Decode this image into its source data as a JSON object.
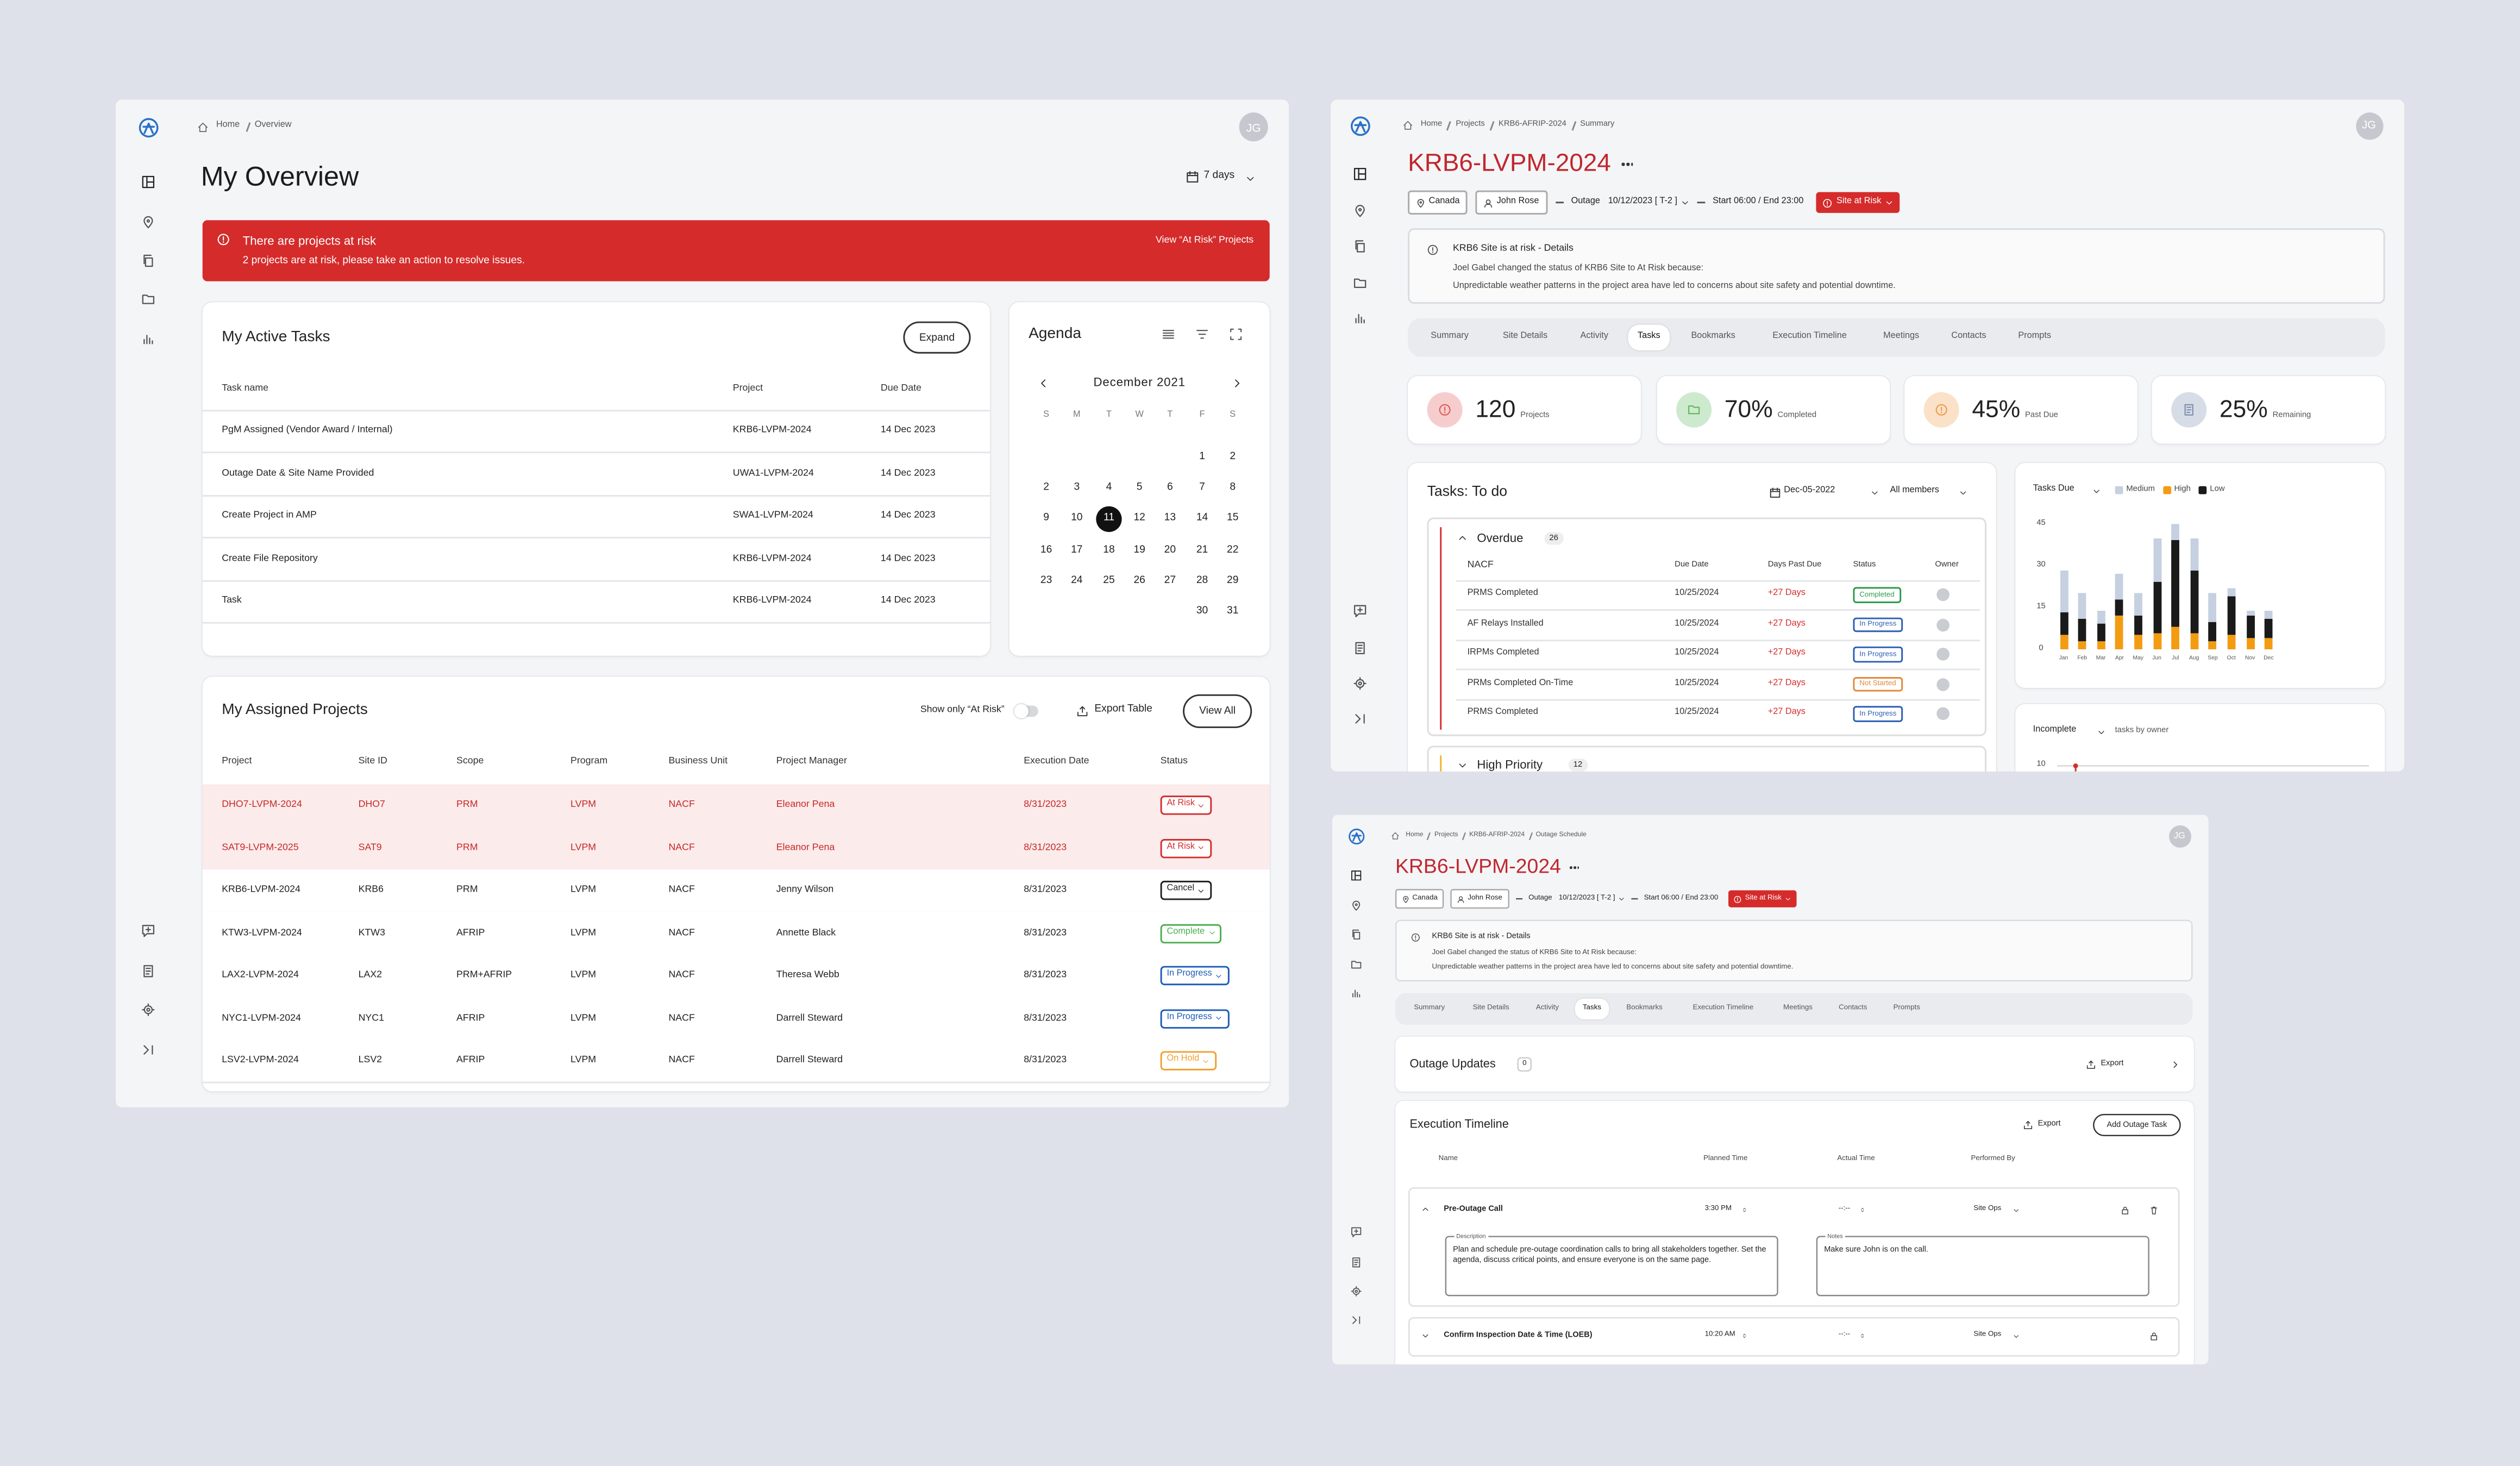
{
  "overview": {
    "breadcrumb": [
      "Home",
      "Overview"
    ],
    "avatar": "JG",
    "title": "My Overview",
    "range": "7 days",
    "alert": {
      "title": "There are projects at risk",
      "message": "2 projects are at risk, please take an action to resolve issues.",
      "action": "View “At Risk” Projects"
    },
    "tasks": {
      "title": "My Active Tasks",
      "button": "Expand",
      "columns": [
        "Task name",
        "Project",
        "Due Date"
      ],
      "rows": [
        [
          "PgM Assigned (Vendor Award / Internal)",
          "KRB6-LVPM-2024",
          "14 Dec 2023"
        ],
        [
          "Outage Date & Site Name Provided",
          "UWA1-LVPM-2024",
          "14 Dec 2023"
        ],
        [
          "Create Project in AMP",
          "SWA1-LVPM-2024",
          "14 Dec 2023"
        ],
        [
          "Create File Repository",
          "KRB6-LVPM-2024",
          "14 Dec 2023"
        ],
        [
          "Task",
          "KRB6-LVPM-2024",
          "14 Dec 2023"
        ]
      ]
    },
    "agenda": {
      "title": "Agenda",
      "month": "December 2021",
      "weekdays": [
        "S",
        "M",
        "T",
        "W",
        "T",
        "F",
        "S"
      ],
      "weeks": [
        [
          null,
          null,
          null,
          null,
          null,
          1,
          2
        ],
        [
          2,
          3,
          4,
          5,
          6,
          7,
          8
        ],
        [
          9,
          10,
          11,
          12,
          13,
          14,
          15
        ],
        [
          16,
          17,
          18,
          19,
          20,
          21,
          22
        ],
        [
          23,
          24,
          25,
          26,
          27,
          28,
          29
        ],
        [
          null,
          null,
          null,
          null,
          null,
          30,
          31
        ]
      ],
      "selected_day": 11
    },
    "projects": {
      "title": "My Assigned Projects",
      "toggle": "Show only “At Risk”",
      "export": "Export Table",
      "button": "View All",
      "columns": [
        "Project",
        "Site ID",
        "Scope",
        "Program",
        "Business Unit",
        "Project Manager",
        "Execution Date",
        "Status"
      ],
      "rows": [
        {
          "cells": [
            "DHO7-LVPM-2024",
            "DHO7",
            "PRM",
            "LVPM",
            "NACF",
            "Eleanor Pena",
            "8/31/2023"
          ],
          "status": "At Risk",
          "status_color": "#d32f2f",
          "text_color": "#c62828",
          "fill": "#fcebeb"
        },
        {
          "cells": [
            "SAT9-LVPM-2025",
            "SAT9",
            "PRM",
            "LVPM",
            "NACF",
            "Eleanor Pena",
            "8/31/2023"
          ],
          "status": "At Risk",
          "status_color": "#d32f2f",
          "text_color": "#c62828",
          "fill": "#fcebeb"
        },
        {
          "cells": [
            "KRB6-LVPM-2024",
            "KRB6",
            "PRM",
            "LVPM",
            "NACF",
            "Jenny Wilson",
            "8/31/2023"
          ],
          "status": "Cancel",
          "status_color": "#222222",
          "text_color": "#222222",
          "fill": "#ffffff"
        },
        {
          "cells": [
            "KTW3-LVPM-2024",
            "KTW3",
            "AFRIP",
            "LVPM",
            "NACF",
            "Annette Black",
            "8/31/2023"
          ],
          "status": "Complete",
          "status_color": "#4caf50",
          "text_color": "#222222",
          "fill": "#ffffff"
        },
        {
          "cells": [
            "LAX2-LVPM-2024",
            "LAX2",
            "PRM+AFRIP",
            "LVPM",
            "NACF",
            "Theresa Webb",
            "8/31/2023"
          ],
          "status": "In Progress",
          "status_color": "#1e5bb8",
          "text_color": "#222222",
          "fill": "#ffffff"
        },
        {
          "cells": [
            "NYC1-LVPM-2024",
            "NYC1",
            "AFRIP",
            "LVPM",
            "NACF",
            "Darrell Steward",
            "8/31/2023"
          ],
          "status": "In Progress",
          "status_color": "#1e5bb8",
          "text_color": "#222222",
          "fill": "#ffffff"
        },
        {
          "cells": [
            "LSV2-LVPM-2024",
            "LSV2",
            "AFRIP",
            "LVPM",
            "NACF",
            "Darrell Steward",
            "8/31/2023"
          ],
          "status": "On Hold",
          "status_color": "#f0a030",
          "text_color": "#222222",
          "fill": "#ffffff"
        }
      ]
    }
  },
  "project_summary": {
    "breadcrumb": [
      "Home",
      "Projects",
      "KRB6-AFRIP-2024",
      "Summary"
    ],
    "avatar": "JG",
    "title": "KRB6-LVPM-2024",
    "chips": {
      "location": "Canada",
      "owner": "John Rose",
      "outage_label": "Outage",
      "outage_date": "10/12/2023 [ T-2 ]",
      "hours": "Start 06:00 / End 23:00",
      "status": "Site at Risk"
    },
    "notice": {
      "title": "KRB6 Site is at risk - Details",
      "lines": [
        "Joel Gabel changed the status of KRB6 Site to At Risk because:",
        "Unpredictable weather patterns in the project area have led to concerns about site safety and potential downtime."
      ]
    },
    "tabs": [
      "Summary",
      "Site Details",
      "Activity",
      "Tasks",
      "Bookmarks",
      "Execution Timeline",
      "Meetings",
      "Contacts",
      "Prompts"
    ],
    "active_tab": 3,
    "stats": [
      {
        "value": "120",
        "label": "Projects",
        "color": "#e05a5a"
      },
      {
        "value": "70%",
        "label": "Completed",
        "color": "#5cb85c"
      },
      {
        "value": "45%",
        "label": "Past Due",
        "color": "#ef9a4a"
      },
      {
        "value": "25%",
        "label": "Remaining",
        "color": "#7b8db0"
      }
    ],
    "todo": {
      "title": "Tasks: To do",
      "date": "Dec-05-2022",
      "members": "All members",
      "groups": [
        {
          "name": "Overdue",
          "count": 26,
          "color": "#d32f2f",
          "columns": [
            "NACF",
            "Due Date",
            "Days Past Due",
            "Status",
            "Owner"
          ],
          "rows": [
            {
              "cells": [
                "PRMS Completed",
                "10/25/2024",
                "+27 Days"
              ],
              "status": "Completed",
              "status_color": "#2e9a4a"
            },
            {
              "cells": [
                "AF Relays Installed",
                "10/25/2024",
                "+27 Days"
              ],
              "status": "In Progress",
              "status_color": "#2c5fb5"
            },
            {
              "cells": [
                "IRPMs Completed",
                "10/25/2024",
                "+27 Days"
              ],
              "status": "In Progress",
              "status_color": "#2c5fb5"
            },
            {
              "cells": [
                "PRMs Completed On-Time",
                "10/25/2024",
                "+27 Days"
              ],
              "status": "Not Started",
              "status_color": "#e08a3a"
            },
            {
              "cells": [
                "PRMS Completed",
                "10/25/2024",
                "+27 Days"
              ],
              "status": "In Progress",
              "status_color": "#2c5fb5"
            }
          ]
        },
        {
          "name": "High Priority",
          "count": 12,
          "color": "#f0b429"
        }
      ]
    },
    "tasks_due_chart": {
      "type": "bar",
      "title": "Tasks Due",
      "categories": [
        "Jan",
        "Feb",
        "Mar",
        "Apr",
        "May",
        "Jun",
        "Jul",
        "Aug",
        "Sep",
        "Oct",
        "Nov",
        "Dec"
      ],
      "series": [
        {
          "name": "Medium",
          "color": "#c5d0e0",
          "values": [
            15,
            9,
            5,
            9,
            8,
            16,
            6,
            12,
            10,
            3,
            2,
            3
          ]
        },
        {
          "name": "High",
          "color": "#f39c12",
          "values": [
            5,
            3,
            3,
            12,
            5,
            6,
            8,
            6,
            3,
            5,
            4,
            4
          ]
        },
        {
          "name": "Low",
          "color": "#1a1a1a",
          "values": [
            8,
            8,
            6,
            6,
            7,
            18,
            31,
            22,
            7,
            14,
            8,
            7
          ]
        }
      ],
      "stack_order": [
        "High",
        "Low",
        "Medium"
      ],
      "ylim": [
        0,
        48
      ],
      "yticks": [
        0,
        15,
        30,
        45
      ],
      "grid": false
    },
    "incomplete": {
      "title": "Incomplete",
      "subtitle": "tasks by owner",
      "yticks": [
        10
      ]
    }
  },
  "outage_schedule": {
    "breadcrumb": [
      "Home",
      "Projects",
      "KRB6-AFRIP-2024",
      "Outage Schedule"
    ],
    "avatar": "JG",
    "title": "KRB6-LVPM-2024",
    "chips": {
      "location": "Canada",
      "owner": "John Rose",
      "outage_label": "Outage",
      "outage_date": "10/12/2023 [ T-2 ]",
      "hours": "Start 06:00 / End 23:00",
      "status": "Site at Risk"
    },
    "notice": {
      "title": "KRB6 Site is at risk - Details",
      "lines": [
        "Joel Gabel changed the status of KRB6 Site to At Risk because:",
        "Unpredictable weather patterns in the project area have led to concerns about site safety and potential downtime."
      ]
    },
    "tabs": [
      "Summary",
      "Site Details",
      "Activity",
      "Tasks",
      "Bookmarks",
      "Execution Timeline",
      "Meetings",
      "Contacts",
      "Prompts"
    ],
    "active_tab": 3,
    "updates": {
      "title": "Outage Updates",
      "count": 0,
      "export": "Export"
    },
    "timeline": {
      "title": "Execution Timeline",
      "export": "Export",
      "button": "Add Outage Task",
      "columns": [
        "Name",
        "Planned Time",
        "Actual Time",
        "Performed By"
      ],
      "items": [
        {
          "name": "Pre-Outage Call",
          "planned": "3:30 PM",
          "actual": "--:--",
          "by": "Site Ops",
          "description_label": "Description",
          "description": "Plan and schedule pre-outage coordination calls to bring all stakeholders together. Set the agenda, discuss critical points, and ensure everyone is on the same page.",
          "notes_label": "Notes",
          "notes": "Make sure John is on the call."
        },
        {
          "name": "Confirm Inspection Date & Time (LOEB)",
          "planned": "10:20 AM",
          "actual": "--:--",
          "by": "Site Ops"
        }
      ]
    }
  }
}
